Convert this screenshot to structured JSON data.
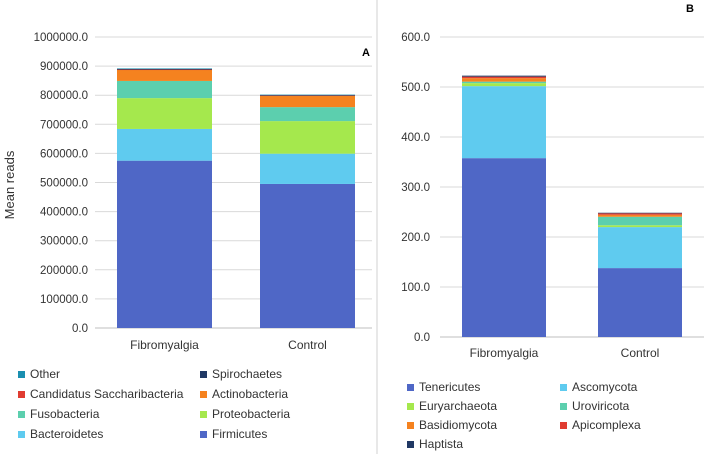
{
  "chart_data": [
    {
      "type": "bar",
      "stacked": true,
      "panel_label": "A",
      "title": "",
      "xlabel": "",
      "ylabel": "Mean reads",
      "ylim": [
        0,
        1000000
      ],
      "yticks": [
        "0.0",
        "100000.0",
        "200000.0",
        "300000.0",
        "400000.0",
        "500000.0",
        "600000.0",
        "700000.0",
        "800000.0",
        "900000.0",
        "1000000.0"
      ],
      "grid": true,
      "legend_position": "bottom",
      "categories": [
        "Fibromyalgia",
        "Control"
      ],
      "series": [
        {
          "name": "Firmicutes",
          "color": "#4f67c6",
          "values": [
            575000,
            495000
          ]
        },
        {
          "name": "Bacteroidetes",
          "color": "#5fcbef",
          "values": [
            109000,
            104000
          ]
        },
        {
          "name": "Proteobacteria",
          "color": "#a5e84d",
          "values": [
            106000,
            112000
          ]
        },
        {
          "name": "Fusobacteria",
          "color": "#5ccfae",
          "values": [
            59000,
            48000
          ]
        },
        {
          "name": "Actinobacteria",
          "color": "#f5821f",
          "values": [
            38000,
            39000
          ]
        },
        {
          "name": "Candidatus Saccharibacteria",
          "color": "#e03c31",
          "values": [
            1500,
            1500
          ]
        },
        {
          "name": "Spirochaetes",
          "color": "#203864",
          "values": [
            1500,
            1000
          ]
        },
        {
          "name": "Other",
          "color": "#1a8fb0",
          "values": [
            2000,
            1500
          ]
        }
      ],
      "legend_order": [
        "Other",
        "Spirochaetes",
        "Candidatus Saccharibacteria",
        "Actinobacteria",
        "Fusobacteria",
        "Proteobacteria",
        "Bacteroidetes",
        "Firmicutes"
      ]
    },
    {
      "type": "bar",
      "stacked": true,
      "panel_label": "B",
      "title": "",
      "xlabel": "",
      "ylabel": "",
      "ylim": [
        0,
        600
      ],
      "yticks": [
        "0.0",
        "100.0",
        "200.0",
        "300.0",
        "400.0",
        "500.0",
        "600.0"
      ],
      "grid": true,
      "legend_position": "bottom",
      "categories": [
        "Fibromyalgia",
        "Control"
      ],
      "series": [
        {
          "name": "Tenericutes",
          "color": "#4f67c6",
          "values": [
            357.7,
            137.8
          ]
        },
        {
          "name": "Ascomycota",
          "color": "#5fcbef",
          "values": [
            144.0,
            82.0
          ]
        },
        {
          "name": "Euryarchaeota",
          "color": "#a5e84d",
          "values": [
            6.0,
            3.7
          ]
        },
        {
          "name": "Uroviricota",
          "color": "#5ccfae",
          "values": [
            3.0,
            17.0
          ]
        },
        {
          "name": "Basidiomycota",
          "color": "#f5821f",
          "values": [
            7.0,
            4.0
          ]
        },
        {
          "name": "Apicomplexa",
          "color": "#e03c31",
          "values": [
            3.0,
            3.0
          ]
        },
        {
          "name": "Haptista",
          "color": "#203864",
          "values": [
            2.0,
            1.0
          ]
        }
      ],
      "legend_order": [
        "Tenericutes",
        "Ascomycota",
        "Euryarchaeota",
        "Uroviricota",
        "Basidiomycota",
        "Apicomplexa",
        "Haptista"
      ]
    }
  ]
}
